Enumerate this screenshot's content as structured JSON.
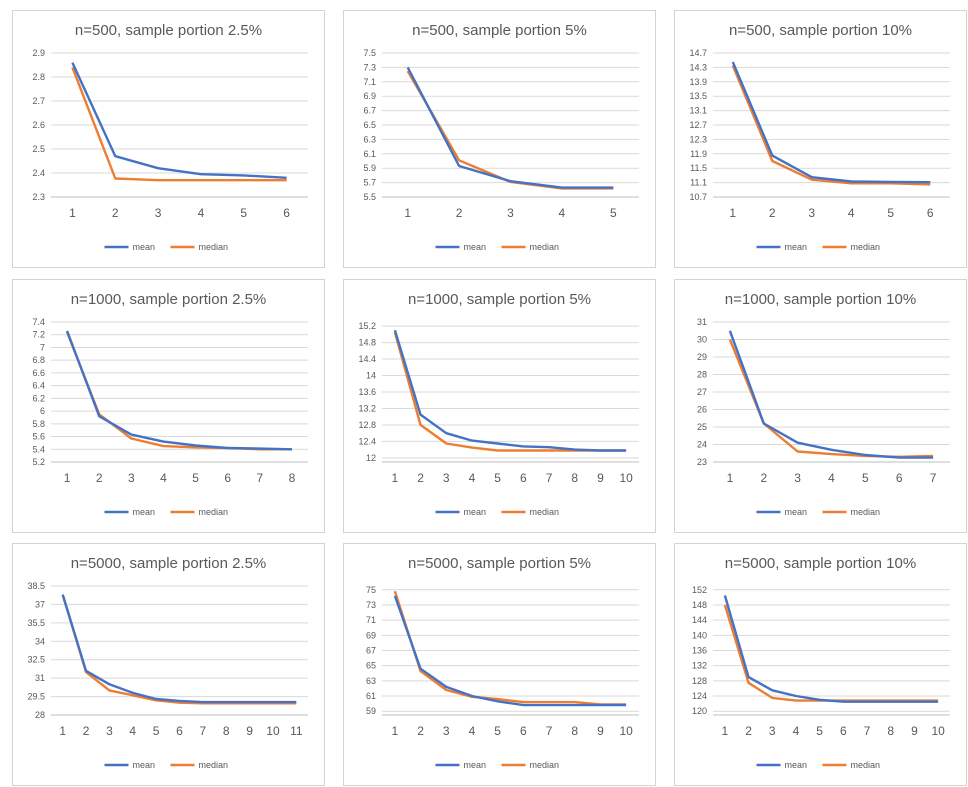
{
  "colors": {
    "mean": "#4472C4",
    "median": "#ED7D31"
  },
  "legend": {
    "mean": "mean",
    "median": "median"
  },
  "chart_data": [
    {
      "type": "line",
      "title": "n=500, sample portion 2.5%",
      "x": [
        1,
        2,
        3,
        4,
        5,
        6
      ],
      "yticks": [
        "2.3",
        "2.4",
        "2.5",
        "2.6",
        "2.7",
        "2.8",
        "2.9"
      ],
      "ylim": [
        2.3,
        2.9
      ],
      "series": [
        {
          "name": "mean",
          "values": [
            2.86,
            2.47,
            2.42,
            2.395,
            2.39,
            2.38
          ]
        },
        {
          "name": "median",
          "values": [
            2.84,
            2.377,
            2.37,
            2.37,
            2.37,
            2.37
          ]
        }
      ],
      "legend_position": "bottom",
      "grid": true
    },
    {
      "type": "line",
      "title": "n=500, sample portion 5%",
      "x": [
        1,
        2,
        3,
        4,
        5
      ],
      "yticks": [
        "5.5",
        "5.7",
        "5.9",
        "6.1",
        "6.3",
        "6.5",
        "6.7",
        "6.9",
        "7.1",
        "7.3",
        "7.5"
      ],
      "ylim": [
        5.5,
        7.5
      ],
      "series": [
        {
          "name": "mean",
          "values": [
            7.3,
            5.93,
            5.72,
            5.63,
            5.63
          ]
        },
        {
          "name": "median",
          "values": [
            7.25,
            6.01,
            5.71,
            5.62,
            5.62
          ]
        }
      ],
      "legend_position": "bottom",
      "grid": true
    },
    {
      "type": "line",
      "title": "n=500, sample portion 10%",
      "x": [
        1,
        2,
        3,
        4,
        5,
        6
      ],
      "yticks": [
        "10.7",
        "11.1",
        "11.5",
        "11.9",
        "12.3",
        "12.7",
        "13.1",
        "13.5",
        "13.9",
        "14.3",
        "14.7"
      ],
      "ylim": [
        10.7,
        14.7
      ],
      "series": [
        {
          "name": "mean",
          "values": [
            14.45,
            11.85,
            11.25,
            11.13,
            11.12,
            11.11
          ]
        },
        {
          "name": "median",
          "values": [
            14.35,
            11.7,
            11.18,
            11.08,
            11.08,
            11.05
          ]
        }
      ],
      "legend_position": "bottom",
      "grid": true
    },
    {
      "type": "line",
      "title": "n=1000, sample portion 2.5%",
      "x": [
        1,
        2,
        3,
        4,
        5,
        6,
        7,
        8
      ],
      "yticks": [
        "5.2",
        "5.4",
        "5.6",
        "5.8",
        "6",
        "6.2",
        "6.4",
        "6.6",
        "6.8",
        "7",
        "7.2",
        "7.4"
      ],
      "ylim": [
        5.2,
        7.4
      ],
      "series": [
        {
          "name": "mean",
          "values": [
            7.26,
            5.92,
            5.63,
            5.52,
            5.46,
            5.42,
            5.41,
            5.4
          ]
        },
        {
          "name": "median",
          "values": [
            7.24,
            5.95,
            5.57,
            5.45,
            5.43,
            5.42,
            5.4,
            5.4
          ]
        }
      ],
      "legend_position": "bottom",
      "grid": true
    },
    {
      "type": "line",
      "title": "n=1000, sample portion 5%",
      "x": [
        1,
        2,
        3,
        4,
        5,
        6,
        7,
        8,
        9,
        10
      ],
      "yticks": [
        "12",
        "12.4",
        "12.8",
        "13.2",
        "13.6",
        "14",
        "14.4",
        "14.8",
        "15.2"
      ],
      "ylim": [
        11.9,
        15.3
      ],
      "series": [
        {
          "name": "mean",
          "values": [
            15.1,
            13.05,
            12.6,
            12.42,
            12.35,
            12.28,
            12.26,
            12.2,
            12.18,
            12.18
          ]
        },
        {
          "name": "median",
          "values": [
            15.05,
            12.8,
            12.35,
            12.25,
            12.18,
            12.18,
            12.18,
            12.18,
            12.18,
            12.18
          ]
        }
      ],
      "legend_position": "bottom",
      "grid": true
    },
    {
      "type": "line",
      "title": "n=1000, sample portion 10%",
      "x": [
        1,
        2,
        3,
        4,
        5,
        6,
        7
      ],
      "yticks": [
        "23",
        "24",
        "25",
        "26",
        "27",
        "28",
        "29",
        "30",
        "31"
      ],
      "ylim": [
        23,
        31
      ],
      "series": [
        {
          "name": "mean",
          "values": [
            30.5,
            25.2,
            24.1,
            23.7,
            23.4,
            23.25,
            23.25
          ]
        },
        {
          "name": "median",
          "values": [
            30.0,
            25.2,
            23.6,
            23.45,
            23.35,
            23.3,
            23.35
          ]
        }
      ],
      "legend_position": "bottom",
      "grid": true
    },
    {
      "type": "line",
      "title": "n=5000, sample portion 2.5%",
      "x": [
        1,
        2,
        3,
        4,
        5,
        6,
        7,
        8,
        9,
        10,
        11
      ],
      "yticks": [
        "28",
        "29.5",
        "31",
        "32.5",
        "34",
        "35.5",
        "37",
        "38.5"
      ],
      "ylim": [
        28,
        38.5
      ],
      "series": [
        {
          "name": "mean",
          "values": [
            37.8,
            31.6,
            30.5,
            29.8,
            29.3,
            29.15,
            29.05,
            29.05,
            29.05,
            29.05,
            29.05
          ]
        },
        {
          "name": "median",
          "values": [
            37.8,
            31.5,
            30.0,
            29.6,
            29.2,
            29.0,
            28.95,
            28.95,
            28.95,
            28.95,
            28.95
          ]
        }
      ],
      "legend_position": "bottom",
      "grid": true
    },
    {
      "type": "line",
      "title": "n=5000, sample portion 5%",
      "x": [
        1,
        2,
        3,
        4,
        5,
        6,
        7,
        8,
        9,
        10
      ],
      "yticks": [
        "59",
        "61",
        "63",
        "65",
        "67",
        "69",
        "71",
        "73",
        "75"
      ],
      "ylim": [
        58.5,
        75.5
      ],
      "series": [
        {
          "name": "mean",
          "values": [
            74.2,
            64.6,
            62.2,
            61.0,
            60.3,
            59.8,
            59.8,
            59.8,
            59.8,
            59.8
          ]
        },
        {
          "name": "median",
          "values": [
            74.8,
            64.3,
            61.8,
            60.9,
            60.6,
            60.2,
            60.2,
            60.2,
            59.9,
            59.9
          ]
        }
      ],
      "legend_position": "bottom",
      "grid": true
    },
    {
      "type": "line",
      "title": "n=5000, sample portion 10%",
      "x": [
        1,
        2,
        3,
        4,
        5,
        6,
        7,
        8,
        9,
        10
      ],
      "yticks": [
        "120",
        "124",
        "128",
        "132",
        "136",
        "140",
        "144",
        "148",
        "152"
      ],
      "ylim": [
        119,
        153
      ],
      "series": [
        {
          "name": "mean",
          "values": [
            150.5,
            129.0,
            125.5,
            124.0,
            123.0,
            122.5,
            122.5,
            122.5,
            122.5,
            122.5
          ]
        },
        {
          "name": "median",
          "values": [
            148.0,
            127.5,
            123.5,
            122.8,
            122.8,
            122.8,
            122.8,
            122.8,
            122.8,
            122.8
          ]
        }
      ],
      "legend_position": "bottom",
      "grid": true
    }
  ]
}
